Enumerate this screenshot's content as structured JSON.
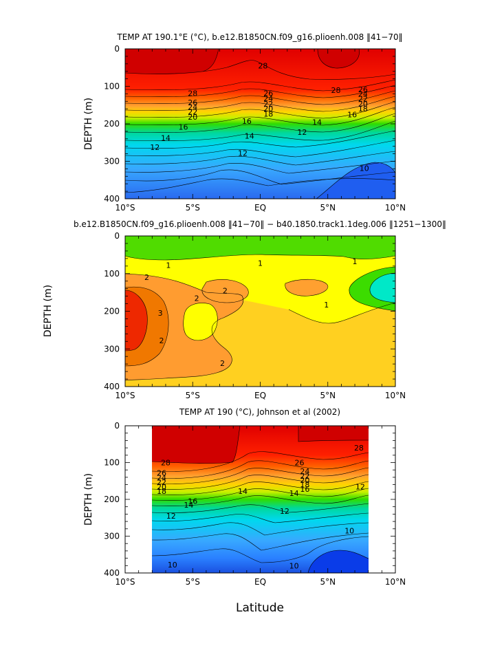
{
  "figure": {
    "xlabel": "Latitude"
  },
  "chart_data": [
    {
      "type": "heatmap",
      "title": "TEMP AT 190.1°E (°C), b.e12.B1850CN.f09_g16.plioenh.008 ‖41−70‖",
      "ylabel": "DEPTH (m)",
      "xlabel": "",
      "x_range": [
        -10,
        10
      ],
      "y_range": [
        0,
        400
      ],
      "y_inverted": true,
      "x_ticks": [
        -10,
        -5,
        0,
        5,
        10
      ],
      "x_tick_labels": [
        "10°S",
        "5°S",
        "EQ",
        "5°N",
        "10°N"
      ],
      "y_ticks": [
        0,
        100,
        200,
        300,
        400
      ],
      "y_tick_labels": [
        "0",
        "100",
        "200",
        "300",
        "400"
      ],
      "contour_labels": [
        {
          "text": "28",
          "lat": 0.2,
          "depth": 45
        },
        {
          "text": "28",
          "lat": -5.0,
          "depth": 118
        },
        {
          "text": "28",
          "lat": 5.6,
          "depth": 110
        },
        {
          "text": "26",
          "lat": -5.0,
          "depth": 143
        },
        {
          "text": "24",
          "lat": -5.0,
          "depth": 155
        },
        {
          "text": "22",
          "lat": -5.0,
          "depth": 168
        },
        {
          "text": "20",
          "lat": -5.0,
          "depth": 182
        },
        {
          "text": "26",
          "lat": 0.6,
          "depth": 118
        },
        {
          "text": "24",
          "lat": 0.6,
          "depth": 132
        },
        {
          "text": "22",
          "lat": 0.6,
          "depth": 147
        },
        {
          "text": "20",
          "lat": 0.6,
          "depth": 160
        },
        {
          "text": "18",
          "lat": 0.6,
          "depth": 173
        },
        {
          "text": "26",
          "lat": 7.6,
          "depth": 108
        },
        {
          "text": "24",
          "lat": 7.6,
          "depth": 120
        },
        {
          "text": "22",
          "lat": 7.6,
          "depth": 133
        },
        {
          "text": "20",
          "lat": 7.6,
          "depth": 147
        },
        {
          "text": "18",
          "lat": 7.6,
          "depth": 160
        },
        {
          "text": "16",
          "lat": 6.8,
          "depth": 175
        },
        {
          "text": "14",
          "lat": 4.2,
          "depth": 195
        },
        {
          "text": "12",
          "lat": 3.1,
          "depth": 222
        },
        {
          "text": "16",
          "lat": -5.7,
          "depth": 208
        },
        {
          "text": "16",
          "lat": -1.0,
          "depth": 193
        },
        {
          "text": "14",
          "lat": -7.0,
          "depth": 238
        },
        {
          "text": "14",
          "lat": -0.8,
          "depth": 232
        },
        {
          "text": "12",
          "lat": -7.8,
          "depth": 262
        },
        {
          "text": "12",
          "lat": -1.3,
          "depth": 278
        },
        {
          "text": "10",
          "lat": 7.7,
          "depth": 318
        }
      ]
    },
    {
      "type": "heatmap",
      "title": "b.e12.B1850CN.f09_g16.plioenh.008 ‖41−70‖ − b40.1850.track1.1deg.006 ‖1251−1300‖",
      "ylabel": "DEPTH (m)",
      "xlabel": "",
      "x_range": [
        -10,
        10
      ],
      "y_range": [
        0,
        400
      ],
      "y_inverted": true,
      "x_ticks": [
        -10,
        -5,
        0,
        5,
        10
      ],
      "x_tick_labels": [
        "10°S",
        "5°S",
        "EQ",
        "5°N",
        "10°N"
      ],
      "y_ticks": [
        0,
        100,
        200,
        300,
        400
      ],
      "y_tick_labels": [
        "0",
        "100",
        "200",
        "300",
        "400"
      ],
      "contour_labels": [
        {
          "text": "1",
          "lat": -6.8,
          "depth": 78
        },
        {
          "text": "1",
          "lat": 0.0,
          "depth": 72
        },
        {
          "text": "1",
          "lat": 7.0,
          "depth": 68
        },
        {
          "text": "1",
          "lat": 4.9,
          "depth": 183
        },
        {
          "text": "2",
          "lat": -8.4,
          "depth": 110
        },
        {
          "text": "2",
          "lat": -2.6,
          "depth": 145
        },
        {
          "text": "2",
          "lat": -4.7,
          "depth": 165
        },
        {
          "text": "2",
          "lat": -7.3,
          "depth": 278
        },
        {
          "text": "2",
          "lat": -2.8,
          "depth": 338
        },
        {
          "text": "3",
          "lat": -7.4,
          "depth": 205
        }
      ]
    },
    {
      "type": "heatmap",
      "title": "TEMP AT 190 (°C), Johnson et al (2002)",
      "ylabel": "DEPTH (m)",
      "xlabel": "Latitude",
      "x_range": [
        -10,
        10
      ],
      "y_range": [
        0,
        400
      ],
      "y_inverted": true,
      "data_extent_lat": [
        -8,
        8
      ],
      "data_extent_depth": [
        10,
        400
      ],
      "x_ticks": [
        -10,
        -5,
        0,
        5,
        10
      ],
      "x_tick_labels": [
        "10°S",
        "5°S",
        "EQ",
        "5°N",
        "10°N"
      ],
      "y_ticks": [
        0,
        100,
        200,
        300,
        400
      ],
      "y_tick_labels": [
        "0",
        "100",
        "200",
        "300",
        "400"
      ],
      "contour_labels": [
        {
          "text": "28",
          "lat": 7.3,
          "depth": 60
        },
        {
          "text": "28",
          "lat": -7.0,
          "depth": 100
        },
        {
          "text": "26",
          "lat": 2.9,
          "depth": 100
        },
        {
          "text": "26",
          "lat": -7.3,
          "depth": 128
        },
        {
          "text": "24",
          "lat": -7.3,
          "depth": 141
        },
        {
          "text": "22",
          "lat": -7.3,
          "depth": 153
        },
        {
          "text": "20",
          "lat": -7.3,
          "depth": 166
        },
        {
          "text": "18",
          "lat": -7.3,
          "depth": 178
        },
        {
          "text": "24",
          "lat": 3.3,
          "depth": 123
        },
        {
          "text": "22",
          "lat": 3.3,
          "depth": 136
        },
        {
          "text": "20",
          "lat": 3.3,
          "depth": 148
        },
        {
          "text": "18",
          "lat": 3.3,
          "depth": 160
        },
        {
          "text": "16",
          "lat": 3.3,
          "depth": 172
        },
        {
          "text": "14",
          "lat": 2.5,
          "depth": 183
        },
        {
          "text": "12",
          "lat": 7.4,
          "depth": 165
        },
        {
          "text": "14",
          "lat": -1.3,
          "depth": 178
        },
        {
          "text": "16",
          "lat": -5.0,
          "depth": 205
        },
        {
          "text": "14",
          "lat": -5.3,
          "depth": 215
        },
        {
          "text": "12",
          "lat": -6.6,
          "depth": 245
        },
        {
          "text": "12",
          "lat": 1.8,
          "depth": 232
        },
        {
          "text": "10",
          "lat": 6.6,
          "depth": 285
        },
        {
          "text": "10",
          "lat": -6.5,
          "depth": 378
        },
        {
          "text": "10",
          "lat": 2.5,
          "depth": 380
        }
      ]
    }
  ]
}
